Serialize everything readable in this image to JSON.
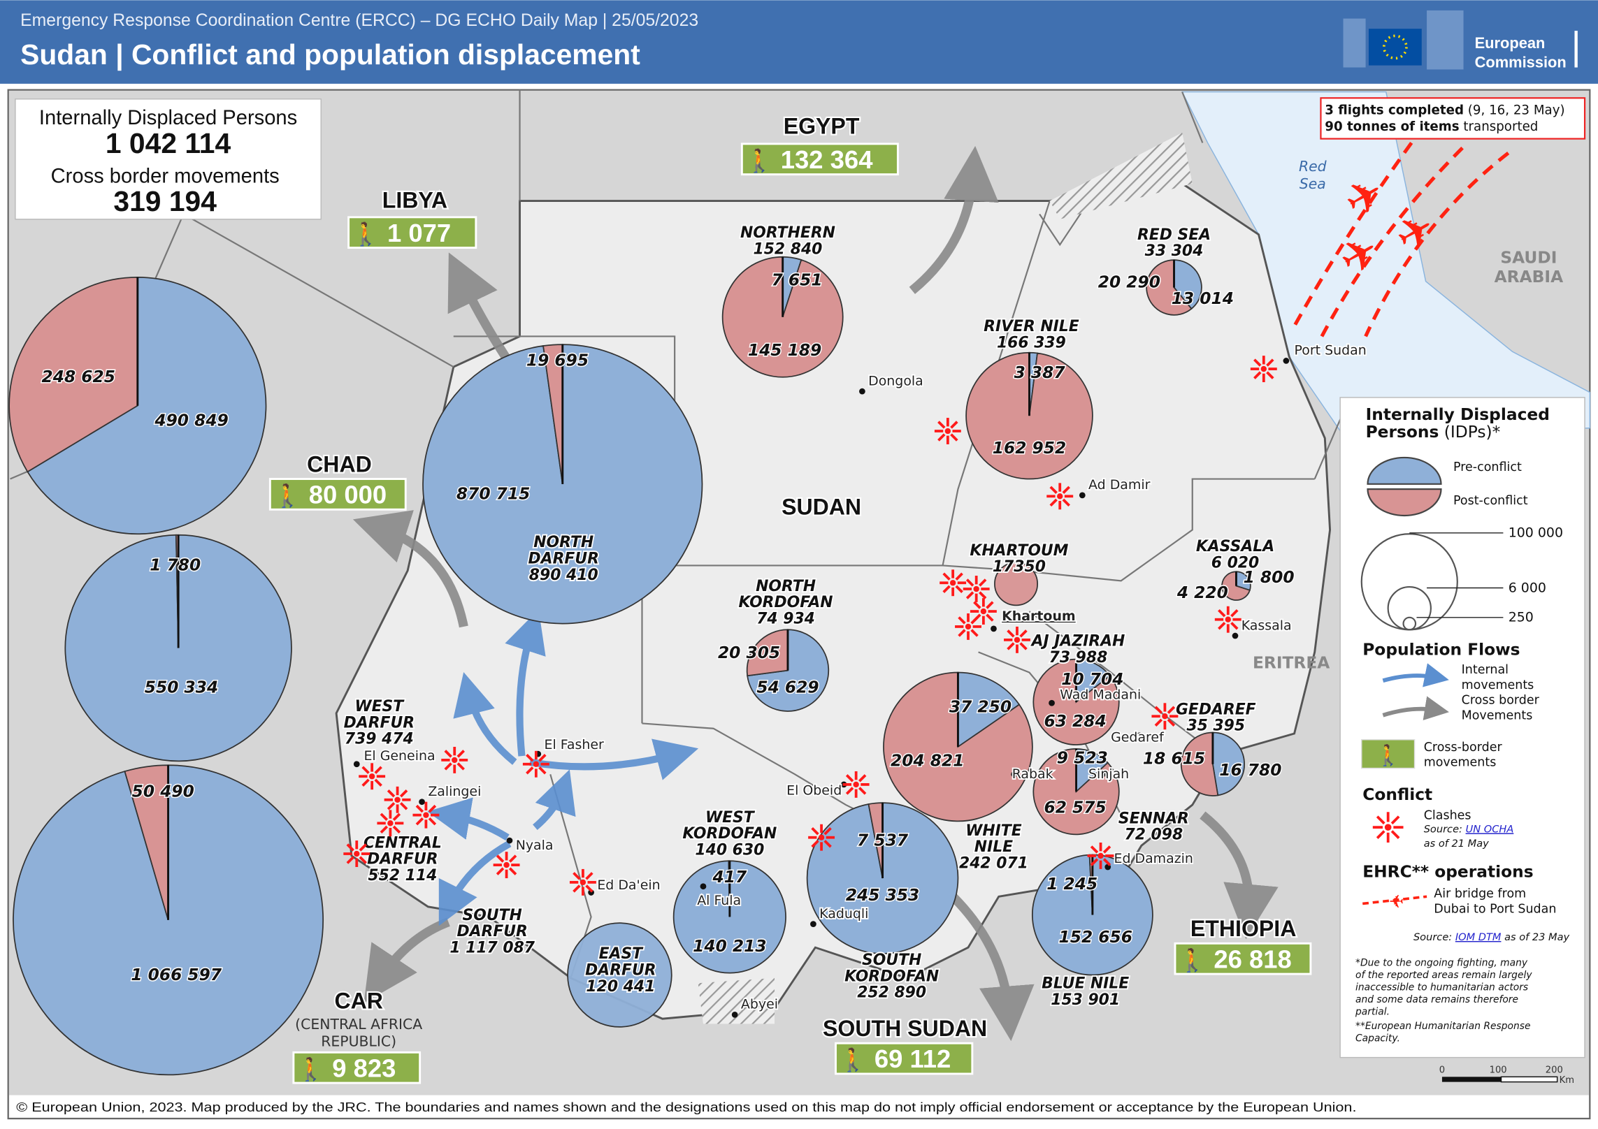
{
  "header": {
    "subtitle": "Emergency Response Coordination Centre (ERCC) – DG ECHO Daily Map | 25/05/2023",
    "title": "Sudan | Conflict and population displacement",
    "logo_line1": "European",
    "logo_line2": "Commission",
    "color": "#4070b0"
  },
  "summary": {
    "idp_label": "Internally  Displaced  Persons",
    "idp_value": "1 042 114",
    "cross_label": "Cross border movements",
    "cross_value": "319 194"
  },
  "flights": {
    "line1_bold": "3 flights completed",
    "line1_rest": "(9, 16, 23 May)",
    "line2_bold": "90 tonnes of items",
    "line2_rest": "transported"
  },
  "colors": {
    "pre_conflict": "#8fb0d8",
    "post_conflict": "#d89494",
    "badge": "#8db04a",
    "clash": "#ff1a1a",
    "sea": "#e3effa"
  },
  "map_labels": {
    "country": "SUDAN",
    "red_sea_1": "Red",
    "red_sea_2": "Sea",
    "saudi_1": "SAUDI",
    "saudi_2": "ARABIA",
    "eritrea": "ERITREA",
    "car_sub1": "(CENTRAL AFRICA",
    "car_sub2": "REPUBLIC)"
  },
  "neighbours": [
    {
      "name": "LIBYA",
      "cross_border": "1 077"
    },
    {
      "name": "EGYPT",
      "cross_border": "132 364"
    },
    {
      "name": "CHAD",
      "cross_border": "80 000"
    },
    {
      "name": "CAR",
      "cross_border": "9 823"
    },
    {
      "name": "SOUTH SUDAN",
      "cross_border": "69 112"
    },
    {
      "name": "ETHIOPIA",
      "cross_border": "26 818"
    }
  ],
  "states": [
    {
      "name_lines": [
        "WEST",
        "DARFUR"
      ],
      "total": "739 474",
      "pre": 490849,
      "post": 248625,
      "pre_label": "490 849",
      "post_label": "248 625"
    },
    {
      "name_lines": [
        "CENTRAL",
        "DARFUR"
      ],
      "total": "552 114",
      "pre": 550334,
      "post": 1780,
      "pre_label": "550 334",
      "post_label": "1 780"
    },
    {
      "name_lines": [
        "SOUTH",
        "DARFUR"
      ],
      "total": "1 117 087",
      "pre": 1066597,
      "post": 50490,
      "pre_label": "1 066 597",
      "post_label": "50 490"
    },
    {
      "name_lines": [
        "NORTH",
        "DARFUR"
      ],
      "total": "890 410",
      "pre": 870715,
      "post": 19695,
      "pre_label": "870 715",
      "post_label": "19 695"
    },
    {
      "name_lines": [
        "NORTHERN"
      ],
      "total": "152 840",
      "pre": 7651,
      "post": 145189,
      "pre_label": "7 651",
      "post_label": "145 189"
    },
    {
      "name_lines": [
        "RED SEA"
      ],
      "total": "33 304",
      "pre": 13014,
      "post": 20290,
      "pre_label": "13 014",
      "post_label": "20 290"
    },
    {
      "name_lines": [
        "RIVER NILE"
      ],
      "total": "166 339",
      "pre": 3387,
      "post": 162952,
      "pre_label": "3 387",
      "post_label": "162 952"
    },
    {
      "name_lines": [
        "KHARTOUM"
      ],
      "total": "17350",
      "pre": 0,
      "post": 17350,
      "pre_label": "",
      "post_label": ""
    },
    {
      "name_lines": [
        "KASSALA"
      ],
      "total": "6 020",
      "pre": 1800,
      "post": 4220,
      "pre_label": "1 800",
      "post_label": "4 220"
    },
    {
      "name_lines": [
        "NORTH",
        "KORDOFAN"
      ],
      "total": "74 934",
      "pre": 54629,
      "post": 20305,
      "pre_label": "54 629",
      "post_label": "20 305"
    },
    {
      "name_lines": [
        "AJ JAZIRAH"
      ],
      "total": "73 988",
      "pre": 10704,
      "post": 63284,
      "pre_label": "10 704",
      "post_label": "63 284"
    },
    {
      "name_lines": [
        "WHITE",
        "NILE"
      ],
      "total": "242 071",
      "pre": 37250,
      "post": 204821,
      "pre_label": "37 250",
      "post_label": "204 821"
    },
    {
      "name_lines": [
        "SENNAR"
      ],
      "total": "72 098",
      "pre": 9523,
      "post": 62575,
      "pre_label": "9 523",
      "post_label": "62 575"
    },
    {
      "name_lines": [
        "GEDAREF"
      ],
      "total": "35 395",
      "pre": 16780,
      "post": 18615,
      "pre_label": "16 780",
      "post_label": "18 615"
    },
    {
      "name_lines": [
        "WEST",
        "KORDOFAN"
      ],
      "total": "140 630",
      "pre": 140213,
      "post": 417,
      "pre_label": "140 213",
      "post_label": "417"
    },
    {
      "name_lines": [
        "SOUTH",
        "KORDOFAN"
      ],
      "total": "252 890",
      "pre": 245353,
      "post": 7537,
      "pre_label": "245 353",
      "post_label": "7 537"
    },
    {
      "name_lines": [
        "BLUE NILE"
      ],
      "total": "153 901",
      "pre": 152656,
      "post": 1245,
      "pre_label": "152 656",
      "post_label": "1 245"
    },
    {
      "name_lines": [
        "EAST",
        "DARFUR"
      ],
      "total": "120 441",
      "pre": 120441,
      "post": 0,
      "pre_label": "",
      "post_label": ""
    }
  ],
  "cities": [
    "El Fasher",
    "El Geneina",
    "Zalingei",
    "Nyala",
    "Ed Da'ein",
    "Al Fula",
    "Kaduqli",
    "Abyei",
    "El Obeid",
    "Dongola",
    "Ad Damir",
    "Khartoum",
    "Wad Madani",
    "Rabak",
    "Gedaref",
    "Sinjah",
    "Ed Damazin",
    "Kassala",
    "Port Sudan"
  ],
  "legend": {
    "idp_title1": "Internally Displaced",
    "idp_title2": "Persons",
    "idp_title2_rest": "(IDPs)*",
    "pre": "Pre-conflict",
    "post": "Post-conflict",
    "size_large": "100 000",
    "size_mid": "6 000",
    "size_small": "250",
    "flows_title": "Population Flows",
    "internal1": "Internal",
    "internal2": "movements",
    "cross1": "Cross border",
    "cross2": "Movements",
    "badge1": "Cross-border",
    "badge2": "movements",
    "conflict_title": "Conflict",
    "clashes": "Clashes",
    "clash_source_prefix": "Source:",
    "clash_source_link": "UN OCHA",
    "clash_date": "as of 21 May",
    "ehrc_title": "EHRC** operations",
    "air1": "Air bridge from",
    "air2": "Dubai to Port Sudan",
    "source_prefix": "Source:",
    "source_link": "IOM DTM",
    "source_date": "as of 23 May",
    "note1": [
      "*Due to the ongoing fighting, many",
      "of the reported areas remain largely",
      "inaccessible to humanitarian actors",
      "and some data remains therefore",
      "partial."
    ],
    "note2": [
      "**European Humanitarian Response",
      "Capacity."
    ]
  },
  "scale": {
    "t0": "0",
    "t1": "100",
    "t2": "200",
    "unit": "Km"
  },
  "footer": "© European Union, 2023. Map produced by the JRC. The boundaries and names shown and the designations used on this map do not imply official endorsement or acceptance by the European Union."
}
